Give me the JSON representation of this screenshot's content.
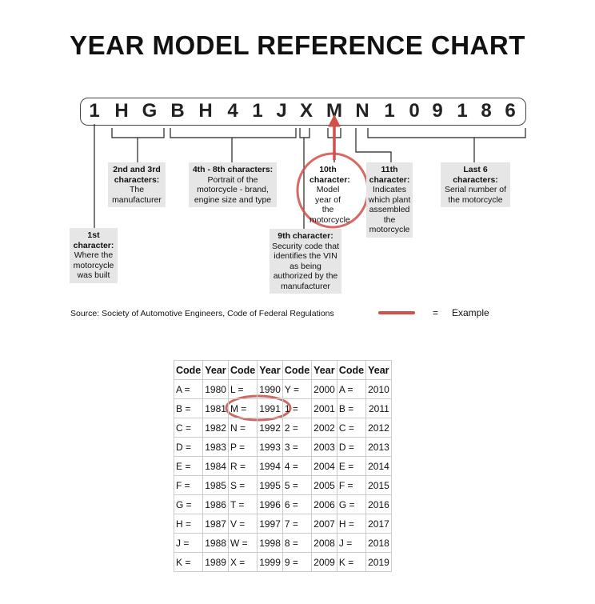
{
  "title": "YEAR MODEL REFERENCE CHART",
  "vin": [
    "1",
    "H",
    "G",
    "B",
    "H",
    "4",
    "1",
    "J",
    "X",
    "M",
    "N",
    "1",
    "0",
    "9",
    "1",
    "8",
    "6"
  ],
  "labels": {
    "first": {
      "head": "1st character:",
      "body": "Where the motorcycle was built"
    },
    "second_third": {
      "head": "2nd and 3rd characters:",
      "body": "The manufacturer"
    },
    "fourth_eighth": {
      "head": "4th - 8th characters:",
      "body": "Portrait of the motorcycle - brand, engine size and type"
    },
    "ninth": {
      "head": "9th character:",
      "body": "Security code that identifies the VIN as being authorized by the manufacturer"
    },
    "tenth": {
      "head": "10th character:",
      "body": "Model year of the motorcycle"
    },
    "eleventh": {
      "head": "11th character:",
      "body": "Indicates which plant assembled the motorcycle"
    },
    "last_six": {
      "head": "Last 6 characters:",
      "body": "Serial number of the motorcycle"
    }
  },
  "source": "Source:  Society of Automotive Engineers, Code of Federal Regulations",
  "legend": {
    "equals": "=",
    "example": "Example",
    "color": "#d0504a"
  },
  "table": {
    "headers": [
      "Code",
      "Year",
      "Code",
      "Year",
      "Code",
      "Year",
      "Code",
      "Year"
    ],
    "rows": [
      [
        "A =",
        "1980",
        "L =",
        "1990",
        "Y =",
        "2000",
        "A =",
        "2010"
      ],
      [
        "B =",
        "1981",
        "M =",
        "1991",
        "1 =",
        "2001",
        "B =",
        "2011"
      ],
      [
        "C =",
        "1982",
        "N =",
        "1992",
        "2 =",
        "2002",
        "C =",
        "2012"
      ],
      [
        "D =",
        "1983",
        "P =",
        "1993",
        "3 =",
        "2003",
        "D =",
        "2013"
      ],
      [
        "E =",
        "1984",
        "R =",
        "1994",
        "4 =",
        "2004",
        "E =",
        "2014"
      ],
      [
        "F =",
        "1985",
        "S =",
        "1995",
        "5 =",
        "2005",
        "F =",
        "2015"
      ],
      [
        "G =",
        "1986",
        "T =",
        "1996",
        "6 =",
        "2006",
        "G =",
        "2016"
      ],
      [
        "H =",
        "1987",
        "V =",
        "1997",
        "7 =",
        "2007",
        "H =",
        "2017"
      ],
      [
        "J =",
        "1988",
        "W =",
        "1998",
        "8 =",
        "2008",
        "J =",
        "2018"
      ],
      [
        "K =",
        "1989",
        "X =",
        "1999",
        "9 =",
        "2009",
        "K =",
        "2019"
      ]
    ]
  }
}
